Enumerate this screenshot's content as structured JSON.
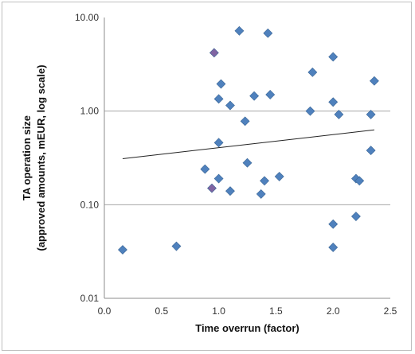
{
  "chart_data": {
    "type": "scatter",
    "xlabel": "Time overrun (factor)",
    "ylabel_line1": "TA operation size",
    "ylabel_line2": "(approved amounts, mEUR, log scale)",
    "xlim": [
      0.0,
      2.5
    ],
    "ylim": [
      0.01,
      10.0
    ],
    "y_scale": "log",
    "x_ticks": [
      "0.0",
      "0.5",
      "1.0",
      "1.5",
      "2.0",
      "2.5"
    ],
    "y_ticks": [
      "10.00",
      "1.00",
      "0.10",
      "0.01"
    ],
    "grid": "horizontal",
    "points": [
      {
        "x": 0.16,
        "y": 0.033
      },
      {
        "x": 0.63,
        "y": 0.036
      },
      {
        "x": 0.88,
        "y": 0.24
      },
      {
        "x": 0.94,
        "y": 0.15
      },
      {
        "x": 0.96,
        "y": 4.2
      },
      {
        "x": 1.0,
        "y": 0.46
      },
      {
        "x": 1.0,
        "y": 1.35
      },
      {
        "x": 1.0,
        "y": 0.19
      },
      {
        "x": 1.02,
        "y": 1.95
      },
      {
        "x": 1.1,
        "y": 1.15
      },
      {
        "x": 1.1,
        "y": 0.14
      },
      {
        "x": 1.18,
        "y": 7.2
      },
      {
        "x": 1.23,
        "y": 0.78
      },
      {
        "x": 1.25,
        "y": 0.28
      },
      {
        "x": 1.31,
        "y": 1.45
      },
      {
        "x": 1.37,
        "y": 0.13
      },
      {
        "x": 1.4,
        "y": 0.18
      },
      {
        "x": 1.43,
        "y": 6.8
      },
      {
        "x": 1.45,
        "y": 1.5
      },
      {
        "x": 1.53,
        "y": 0.2
      },
      {
        "x": 1.8,
        "y": 1.0
      },
      {
        "x": 1.82,
        "y": 2.6
      },
      {
        "x": 2.0,
        "y": 3.8
      },
      {
        "x": 2.0,
        "y": 1.25
      },
      {
        "x": 2.0,
        "y": 0.062
      },
      {
        "x": 2.0,
        "y": 0.035
      },
      {
        "x": 2.05,
        "y": 0.92
      },
      {
        "x": 2.2,
        "y": 0.19
      },
      {
        "x": 2.2,
        "y": 0.075
      },
      {
        "x": 2.23,
        "y": 0.18
      },
      {
        "x": 2.33,
        "y": 0.92
      },
      {
        "x": 2.33,
        "y": 0.38
      },
      {
        "x": 2.36,
        "y": 2.1
      }
    ],
    "trendline": {
      "x": [
        0.16,
        2.36
      ],
      "y": [
        0.31,
        0.63
      ]
    },
    "colors": {
      "marker": "#4f81bd",
      "marker_edge": "#3a6595",
      "marker_alt": "#8064a2",
      "trendline": "#222222",
      "grid": "#a6a6a6",
      "axis": "#8c8c8c"
    }
  }
}
